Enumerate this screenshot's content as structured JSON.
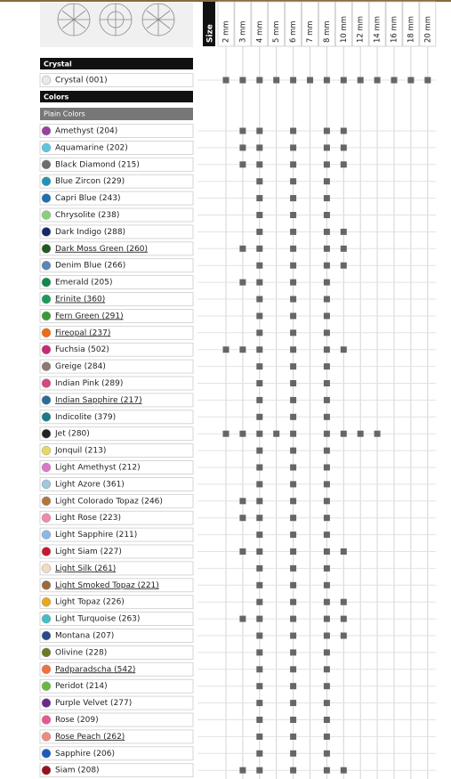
{
  "header": {
    "size_label": "Size",
    "sizes": [
      "2 mm",
      "3 mm",
      "4 mm",
      "5 mm",
      "6 mm",
      "7 mm",
      "8 mm",
      "10 mm",
      "12 mm",
      "14 mm",
      "16 mm",
      "18 mm",
      "20 mm"
    ]
  },
  "crystal": {
    "title": "Crystal",
    "rows": [
      {
        "name": "Crystal (001)",
        "color": "#e8e8ee",
        "link": false,
        "available": [
          true,
          true,
          true,
          true,
          true,
          true,
          true,
          true,
          true,
          true,
          true,
          true,
          true
        ]
      }
    ]
  },
  "colors": {
    "title": "Colors",
    "subtitle": "Plain Colors",
    "rows": [
      {
        "name": "Amethyst (204)",
        "color": "#9b3fa0",
        "link": false,
        "available": [
          false,
          true,
          true,
          false,
          true,
          false,
          true,
          true,
          false,
          false,
          false,
          false,
          false
        ]
      },
      {
        "name": "Aquamarine (202)",
        "color": "#5cc6de",
        "link": false,
        "available": [
          false,
          true,
          true,
          false,
          true,
          false,
          true,
          true,
          false,
          false,
          false,
          false,
          false
        ]
      },
      {
        "name": "Black Diamond (215)",
        "color": "#6a6e72",
        "link": false,
        "available": [
          false,
          true,
          true,
          false,
          true,
          false,
          true,
          true,
          false,
          false,
          false,
          false,
          false
        ]
      },
      {
        "name": "Blue Zircon (229)",
        "color": "#1c95b8",
        "link": false,
        "available": [
          false,
          false,
          true,
          false,
          true,
          false,
          true,
          false,
          false,
          false,
          false,
          false,
          false
        ]
      },
      {
        "name": "Capri Blue (243)",
        "color": "#1c6fb4",
        "link": false,
        "available": [
          false,
          false,
          true,
          false,
          true,
          false,
          true,
          false,
          false,
          false,
          false,
          false,
          false
        ]
      },
      {
        "name": "Chrysolite (238)",
        "color": "#8ccf7a",
        "link": false,
        "available": [
          false,
          false,
          true,
          false,
          true,
          false,
          true,
          false,
          false,
          false,
          false,
          false,
          false
        ]
      },
      {
        "name": "Dark Indigo (288)",
        "color": "#14286a",
        "link": false,
        "available": [
          false,
          false,
          true,
          false,
          true,
          false,
          true,
          true,
          false,
          false,
          false,
          false,
          false
        ]
      },
      {
        "name": "Dark Moss Green (260)",
        "color": "#1f5a20",
        "link": true,
        "available": [
          false,
          true,
          true,
          false,
          true,
          false,
          true,
          true,
          false,
          false,
          false,
          false,
          false
        ]
      },
      {
        "name": "Denim Blue (266)",
        "color": "#5b86b6",
        "link": false,
        "available": [
          false,
          false,
          true,
          false,
          true,
          false,
          true,
          true,
          false,
          false,
          false,
          false,
          false
        ]
      },
      {
        "name": "Emerald (205)",
        "color": "#0d8a4a",
        "link": false,
        "available": [
          false,
          true,
          true,
          false,
          true,
          false,
          true,
          false,
          false,
          false,
          false,
          false,
          false
        ]
      },
      {
        "name": "Erinite (360)",
        "color": "#1c9a5c",
        "link": true,
        "available": [
          false,
          false,
          true,
          false,
          true,
          false,
          true,
          false,
          false,
          false,
          false,
          false,
          false
        ]
      },
      {
        "name": "Fern Green (291)",
        "color": "#3a9a36",
        "link": true,
        "available": [
          false,
          false,
          true,
          false,
          true,
          false,
          true,
          false,
          false,
          false,
          false,
          false,
          false
        ]
      },
      {
        "name": "Fireopal (237)",
        "color": "#f26a12",
        "link": true,
        "available": [
          false,
          false,
          true,
          false,
          true,
          false,
          true,
          false,
          false,
          false,
          false,
          false,
          false
        ]
      },
      {
        "name": "Fuchsia (502)",
        "color": "#c8287a",
        "link": false,
        "available": [
          true,
          true,
          true,
          false,
          true,
          false,
          true,
          true,
          false,
          false,
          false,
          false,
          false
        ]
      },
      {
        "name": "Greige (284)",
        "color": "#8a7a70",
        "link": false,
        "available": [
          false,
          false,
          true,
          false,
          true,
          false,
          true,
          false,
          false,
          false,
          false,
          false,
          false
        ]
      },
      {
        "name": "Indian Pink (289)",
        "color": "#d8487a",
        "link": false,
        "available": [
          false,
          false,
          true,
          false,
          true,
          false,
          true,
          false,
          false,
          false,
          false,
          false,
          false
        ]
      },
      {
        "name": "Indian Sapphire (217)",
        "color": "#2a6c9a",
        "link": true,
        "available": [
          false,
          false,
          true,
          false,
          true,
          false,
          true,
          false,
          false,
          false,
          false,
          false,
          false
        ]
      },
      {
        "name": "Indicolite (379)",
        "color": "#1a7a8a",
        "link": false,
        "available": [
          false,
          false,
          true,
          false,
          true,
          false,
          true,
          false,
          false,
          false,
          false,
          false,
          false
        ]
      },
      {
        "name": "Jet (280)",
        "color": "#222226",
        "link": false,
        "available": [
          true,
          true,
          true,
          true,
          true,
          false,
          true,
          true,
          true,
          true,
          false,
          false,
          false
        ]
      },
      {
        "name": "Jonquil (213)",
        "color": "#e8d860",
        "link": false,
        "available": [
          false,
          false,
          true,
          false,
          true,
          false,
          true,
          false,
          false,
          false,
          false,
          false,
          false
        ]
      },
      {
        "name": "Light Amethyst (212)",
        "color": "#d878c8",
        "link": false,
        "available": [
          false,
          false,
          true,
          false,
          true,
          false,
          true,
          false,
          false,
          false,
          false,
          false,
          false
        ]
      },
      {
        "name": "Light Azore (361)",
        "color": "#9cc8e0",
        "link": false,
        "available": [
          false,
          false,
          true,
          false,
          true,
          false,
          true,
          false,
          false,
          false,
          false,
          false,
          false
        ]
      },
      {
        "name": "Light Colorado Topaz (246)",
        "color": "#b0763a",
        "link": false,
        "available": [
          false,
          true,
          true,
          false,
          true,
          false,
          true,
          false,
          false,
          false,
          false,
          false,
          false
        ]
      },
      {
        "name": "Light Rose (223)",
        "color": "#f08aa8",
        "link": false,
        "available": [
          false,
          true,
          true,
          false,
          true,
          false,
          true,
          false,
          false,
          false,
          false,
          false,
          false
        ]
      },
      {
        "name": "Light Sapphire (211)",
        "color": "#8ab8e8",
        "link": false,
        "available": [
          false,
          false,
          true,
          false,
          true,
          false,
          true,
          false,
          false,
          false,
          false,
          false,
          false
        ]
      },
      {
        "name": "Light Siam (227)",
        "color": "#c81830",
        "link": false,
        "available": [
          false,
          true,
          true,
          false,
          true,
          false,
          true,
          true,
          false,
          false,
          false,
          false,
          false
        ]
      },
      {
        "name": "Light Silk (261)",
        "color": "#f0dcc0",
        "link": true,
        "available": [
          false,
          false,
          true,
          false,
          true,
          false,
          true,
          false,
          false,
          false,
          false,
          false,
          false
        ]
      },
      {
        "name": "Light Smoked Topaz (221)",
        "color": "#9a6a40",
        "link": true,
        "available": [
          false,
          false,
          true,
          false,
          true,
          false,
          true,
          false,
          false,
          false,
          false,
          false,
          false
        ]
      },
      {
        "name": "Light Topaz (226)",
        "color": "#e8a820",
        "link": false,
        "available": [
          false,
          false,
          true,
          false,
          true,
          false,
          true,
          true,
          false,
          false,
          false,
          false,
          false
        ]
      },
      {
        "name": "Light Turquoise (263)",
        "color": "#40c0c8",
        "link": false,
        "available": [
          false,
          true,
          true,
          false,
          true,
          false,
          true,
          true,
          false,
          false,
          false,
          false,
          false
        ]
      },
      {
        "name": "Montana (207)",
        "color": "#2a4a8a",
        "link": false,
        "available": [
          false,
          false,
          true,
          false,
          true,
          false,
          true,
          true,
          false,
          false,
          false,
          false,
          false
        ]
      },
      {
        "name": "Olivine (228)",
        "color": "#6a7a20",
        "link": false,
        "available": [
          false,
          false,
          true,
          false,
          true,
          false,
          true,
          false,
          false,
          false,
          false,
          false,
          false
        ]
      },
      {
        "name": "Padparadscha (542)",
        "color": "#f07040",
        "link": true,
        "available": [
          false,
          false,
          true,
          false,
          true,
          false,
          true,
          false,
          false,
          false,
          false,
          false,
          false
        ]
      },
      {
        "name": "Peridot (214)",
        "color": "#6ab840",
        "link": false,
        "available": [
          false,
          false,
          true,
          false,
          true,
          false,
          true,
          false,
          false,
          false,
          false,
          false,
          false
        ]
      },
      {
        "name": "Purple Velvet (277)",
        "color": "#6a2a8a",
        "link": false,
        "available": [
          false,
          false,
          true,
          false,
          true,
          false,
          true,
          false,
          false,
          false,
          false,
          false,
          false
        ]
      },
      {
        "name": "Rose (209)",
        "color": "#e85890",
        "link": false,
        "available": [
          false,
          false,
          true,
          false,
          true,
          false,
          true,
          false,
          false,
          false,
          false,
          false,
          false
        ]
      },
      {
        "name": "Rose Peach (262)",
        "color": "#f08a80",
        "link": true,
        "available": [
          false,
          false,
          true,
          false,
          true,
          false,
          true,
          false,
          false,
          false,
          false,
          false,
          false
        ]
      },
      {
        "name": "Sapphire (206)",
        "color": "#1a5ac0",
        "link": false,
        "available": [
          false,
          false,
          true,
          false,
          true,
          false,
          true,
          false,
          false,
          false,
          false,
          false,
          false
        ]
      },
      {
        "name": "Siam (208)",
        "color": "#9a1020",
        "link": false,
        "available": [
          false,
          true,
          true,
          false,
          true,
          false,
          true,
          true,
          false,
          false,
          false,
          false,
          false
        ]
      }
    ]
  }
}
